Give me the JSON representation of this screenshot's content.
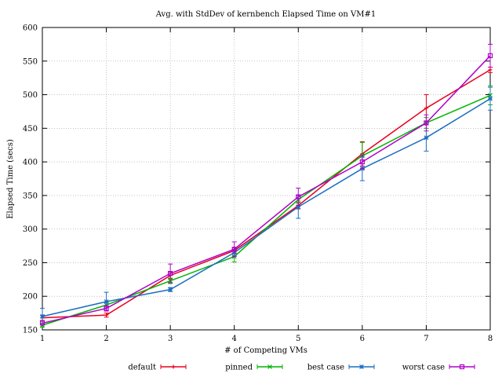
{
  "chart_data": {
    "type": "line",
    "title": "Avg. with StdDev of kernbench Elapsed Time on VM#1",
    "xlabel": "# of Competing VMs",
    "ylabel": "Elapsed Time (secs)",
    "x": [
      1,
      2,
      3,
      4,
      5,
      6,
      7,
      8
    ],
    "xlim": [
      1,
      8
    ],
    "ylim": [
      150,
      600
    ],
    "xticks": [
      "1",
      "2",
      "3",
      "4",
      "5",
      "6",
      "7",
      "8"
    ],
    "yticks": [
      "150",
      "200",
      "250",
      "300",
      "350",
      "400",
      "450",
      "500",
      "550",
      "600"
    ],
    "grid": true,
    "legend_position": "bottom",
    "series": [
      {
        "name": "default",
        "color": "#e8001c",
        "marker": "plus",
        "values": [
          168,
          172,
          231,
          268,
          335,
          412,
          480,
          537
        ],
        "errors": [
          4,
          3,
          5,
          4,
          5,
          18,
          20,
          4
        ]
      },
      {
        "name": "pinned",
        "color": "#00b400",
        "marker": "cross",
        "values": [
          157,
          187,
          223,
          259,
          344,
          409,
          458,
          499
        ],
        "errors": [
          3,
          4,
          4,
          8,
          6,
          20,
          8,
          14
        ]
      },
      {
        "name": "best case",
        "color": "#1b6ec2",
        "marker": "star",
        "values": [
          170,
          192,
          210,
          265,
          333,
          390,
          436,
          494
        ],
        "errors": [
          12,
          14,
          3,
          5,
          17,
          18,
          20,
          17
        ]
      },
      {
        "name": "worst case",
        "color": "#b000c8",
        "marker": "square",
        "values": [
          160,
          182,
          234,
          270,
          348,
          400,
          458,
          558
        ],
        "errors": [
          3,
          4,
          14,
          11,
          13,
          10,
          12,
          17
        ]
      }
    ]
  }
}
